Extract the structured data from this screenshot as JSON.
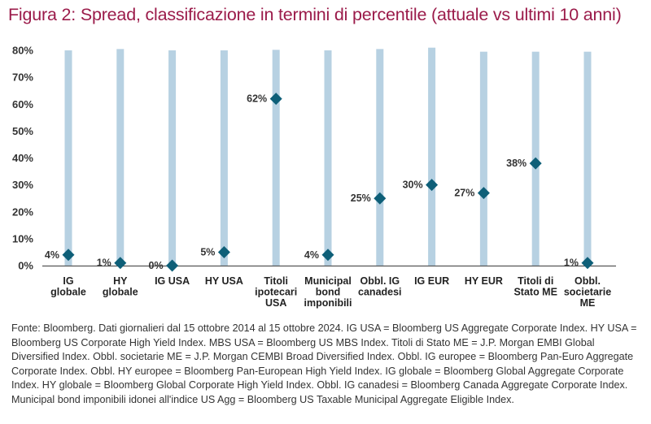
{
  "title": "Figura 2: Spread, classificazione in termini di percentile (attuale vs ultimi 10 anni)",
  "chart_data": {
    "type": "scatter",
    "title": "Figura 2: Spread, classificazione in termini di percentile (attuale vs ultimi 10 anni)",
    "categories": [
      [
        "IG",
        "globale"
      ],
      [
        "HY",
        "globale"
      ],
      [
        "IG USA"
      ],
      [
        "HY USA"
      ],
      [
        "Titoli",
        "ipotecari",
        "USA"
      ],
      [
        "Municipal",
        "bond",
        "imponibili"
      ],
      [
        "Obbl. IG",
        "canadesi"
      ],
      [
        "IG EUR"
      ],
      [
        "HY EUR"
      ],
      [
        "Titoli di",
        "Stato ME"
      ],
      [
        "Obbl.",
        "societarie",
        "ME"
      ]
    ],
    "values": [
      4,
      1,
      0,
      5,
      62,
      4,
      25,
      30,
      27,
      38,
      1
    ],
    "data_labels": [
      "4%",
      "1%",
      "0%",
      "5%",
      "62%",
      "4%",
      "25%",
      "30%",
      "27%",
      "38%",
      "1%"
    ],
    "range_bars": [
      80,
      80.5,
      80,
      80,
      80.2,
      80,
      80.5,
      81,
      79.5,
      79.5,
      79.5
    ],
    "ylim": [
      0,
      80
    ],
    "yticks": [
      "0%",
      "10%",
      "20%",
      "30%",
      "40%",
      "50%",
      "60%",
      "70%",
      "80%"
    ],
    "ytick_values": [
      0,
      10,
      20,
      30,
      40,
      50,
      60,
      70,
      80
    ],
    "xlabel": "",
    "ylabel": "",
    "grid": false,
    "legend": "none",
    "colors": {
      "bar": "#b7d1e2",
      "marker": "#0e5f78",
      "axis": "#555555"
    }
  },
  "source_text": "Fonte: Bloomberg. Dati giornalieri dal 15 ottobre 2014 al 15 ottobre 2024. IG USA = Bloomberg US Aggregate Corporate Index. HY USA = Bloomberg US Corporate High Yield Index. MBS USA = Bloomberg US MBS Index. Titoli di Stato ME = J.P. Morgan EMBI Global Diversified Index. Obbl. societarie ME = J.P. Morgan CEMBI Broad Diversified Index. Obbl. IG europee = Bloomberg Pan-Euro Aggregate Corporate Index. Obbl. HY europee = Bloomberg Pan-European High Yield Index. IG globale = Bloomberg Global Aggregate Corporate Index. HY globale = Bloomberg Global Corporate High Yield Index. Obbl. IG canadesi = Bloomberg Canada Aggregate Corporate Index. Municipal bond imponibili idonei all'indice US Agg = Bloomberg US Taxable Municipal Aggregate Eligible Index."
}
